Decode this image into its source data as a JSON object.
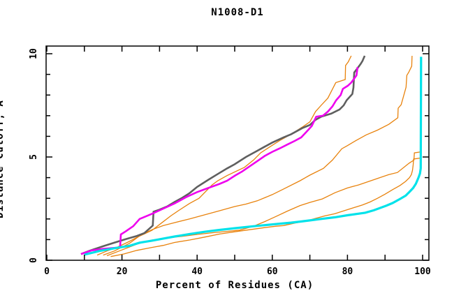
{
  "chart_data": {
    "type": "line",
    "title": "N1008-D1",
    "xlabel": "Percent of Residues (CA)",
    "ylabel": "Distance Cutoff, A",
    "xlim": [
      0,
      100
    ],
    "ylim": [
      0,
      10
    ],
    "x_ticks": [
      0,
      10,
      20,
      30,
      40,
      50,
      60,
      70,
      80,
      90,
      100
    ],
    "x_tick_labels": [
      "0",
      "20",
      "40",
      "60",
      "80",
      "100"
    ],
    "x_labeled_ticks": [
      0,
      20,
      40,
      60,
      80,
      100
    ],
    "y_ticks": [
      0,
      1,
      2,
      3,
      4,
      5,
      6,
      7,
      8,
      9,
      10
    ],
    "y_tick_labels": [
      "0",
      "5",
      "10"
    ],
    "y_labeled_ticks": [
      0,
      5,
      10
    ],
    "grid": false,
    "legend": "none",
    "axis_color": "#000000",
    "series": [
      {
        "name": "model-orange-1",
        "color": "#e8820c",
        "width": 1.3,
        "points": [
          [
            13.4,
            0.25
          ],
          [
            16,
            0.45
          ],
          [
            18.6,
            0.62
          ],
          [
            21.6,
            0.88
          ],
          [
            24.1,
            1.12
          ],
          [
            26,
            1.28
          ],
          [
            28,
            1.45
          ],
          [
            30.5,
            1.8
          ],
          [
            33,
            2.15
          ],
          [
            35,
            2.4
          ],
          [
            38,
            2.75
          ],
          [
            40.5,
            3.0
          ],
          [
            44,
            3.65
          ],
          [
            45.5,
            3.85
          ],
          [
            48,
            4.1
          ],
          [
            52.6,
            4.5
          ],
          [
            55,
            4.85
          ],
          [
            56.9,
            5.2
          ],
          [
            59,
            5.45
          ],
          [
            62,
            5.8
          ],
          [
            65,
            6.1
          ],
          [
            68,
            6.45
          ],
          [
            70,
            6.7
          ],
          [
            71.5,
            7.2
          ],
          [
            73,
            7.5
          ],
          [
            74.8,
            7.85
          ],
          [
            76.9,
            8.6
          ],
          [
            79.4,
            8.75
          ],
          [
            79.5,
            9.43
          ],
          [
            80.2,
            9.6
          ],
          [
            81,
            9.9
          ]
        ]
      },
      {
        "name": "model-orange-2",
        "color": "#e8820c",
        "width": 1.3,
        "points": [
          [
            15,
            0.25
          ],
          [
            18,
            0.45
          ],
          [
            22,
            0.82
          ],
          [
            25,
            1.22
          ],
          [
            28,
            1.48
          ],
          [
            31,
            1.68
          ],
          [
            34,
            1.82
          ],
          [
            38,
            2.0
          ],
          [
            42,
            2.2
          ],
          [
            46,
            2.4
          ],
          [
            50,
            2.6
          ],
          [
            53,
            2.72
          ],
          [
            56,
            2.88
          ],
          [
            60,
            3.18
          ],
          [
            63,
            3.45
          ],
          [
            67.4,
            3.85
          ],
          [
            70,
            4.12
          ],
          [
            73.6,
            4.45
          ],
          [
            76,
            4.85
          ],
          [
            78.5,
            5.4
          ],
          [
            80,
            5.55
          ],
          [
            82.3,
            5.8
          ],
          [
            85,
            6.07
          ],
          [
            88,
            6.3
          ],
          [
            91,
            6.58
          ],
          [
            93.4,
            6.9
          ],
          [
            93.5,
            7.36
          ],
          [
            94.3,
            7.53
          ],
          [
            95.6,
            8.38
          ],
          [
            95.8,
            8.95
          ],
          [
            96.3,
            9.1
          ],
          [
            97.1,
            9.4
          ],
          [
            97.2,
            9.9
          ]
        ]
      },
      {
        "name": "model-orange-3",
        "color": "#e8820c",
        "width": 1.3,
        "points": [
          [
            16,
            0.22
          ],
          [
            20,
            0.5
          ],
          [
            24,
            0.78
          ],
          [
            28,
            0.98
          ],
          [
            32,
            1.08
          ],
          [
            36,
            1.16
          ],
          [
            40,
            1.25
          ],
          [
            44,
            1.33
          ],
          [
            48,
            1.4
          ],
          [
            51.3,
            1.46
          ],
          [
            55,
            1.65
          ],
          [
            58,
            1.87
          ],
          [
            61,
            2.12
          ],
          [
            64,
            2.38
          ],
          [
            67.4,
            2.65
          ],
          [
            70,
            2.8
          ],
          [
            73.3,
            2.97
          ],
          [
            76.7,
            3.27
          ],
          [
            80,
            3.5
          ],
          [
            83,
            3.65
          ],
          [
            87.8,
            3.95
          ],
          [
            91,
            4.15
          ],
          [
            93.3,
            4.25
          ],
          [
            96.4,
            4.7
          ],
          [
            97.7,
            4.85
          ],
          [
            97.8,
            5.2
          ],
          [
            99.6,
            5.25
          ]
        ]
      },
      {
        "name": "model-orange-4",
        "color": "#e8820c",
        "width": 1.3,
        "points": [
          [
            17,
            0.18
          ],
          [
            20.4,
            0.3
          ],
          [
            24,
            0.48
          ],
          [
            28,
            0.62
          ],
          [
            31,
            0.72
          ],
          [
            34,
            0.86
          ],
          [
            38,
            0.98
          ],
          [
            42,
            1.12
          ],
          [
            46,
            1.27
          ],
          [
            50,
            1.38
          ],
          [
            54,
            1.48
          ],
          [
            58,
            1.58
          ],
          [
            61,
            1.65
          ],
          [
            63,
            1.68
          ],
          [
            66,
            1.8
          ],
          [
            69,
            1.9
          ],
          [
            71,
            2.0
          ],
          [
            74,
            2.15
          ],
          [
            76.6,
            2.25
          ],
          [
            80,
            2.45
          ],
          [
            84,
            2.68
          ],
          [
            86,
            2.82
          ],
          [
            88,
            3.0
          ],
          [
            90,
            3.2
          ],
          [
            92,
            3.42
          ],
          [
            94,
            3.62
          ],
          [
            95.5,
            3.82
          ],
          [
            96.5,
            4.0
          ],
          [
            97,
            4.15
          ],
          [
            97.3,
            4.35
          ],
          [
            97.5,
            4.62
          ],
          [
            97.6,
            4.9
          ],
          [
            99.4,
            4.95
          ]
        ]
      },
      {
        "name": "model-gray",
        "color": "#5f5f5f",
        "width": 2.6,
        "points": [
          [
            9.1,
            0.3
          ],
          [
            12,
            0.5
          ],
          [
            15,
            0.68
          ],
          [
            18,
            0.85
          ],
          [
            21,
            1.02
          ],
          [
            24,
            1.18
          ],
          [
            26,
            1.32
          ],
          [
            28.2,
            1.68
          ],
          [
            28.4,
            2.35
          ],
          [
            30,
            2.45
          ],
          [
            32,
            2.6
          ],
          [
            34,
            2.82
          ],
          [
            36,
            3.02
          ],
          [
            38,
            3.25
          ],
          [
            40,
            3.55
          ],
          [
            43,
            3.9
          ],
          [
            45.7,
            4.2
          ],
          [
            48,
            4.45
          ],
          [
            50,
            4.65
          ],
          [
            53,
            5.0
          ],
          [
            56,
            5.3
          ],
          [
            58,
            5.5
          ],
          [
            60,
            5.7
          ],
          [
            63,
            5.95
          ],
          [
            65,
            6.1
          ],
          [
            68,
            6.4
          ],
          [
            70,
            6.55
          ],
          [
            71.5,
            6.8
          ],
          [
            73,
            6.95
          ],
          [
            75.7,
            7.1
          ],
          [
            77.9,
            7.3
          ],
          [
            79,
            7.5
          ],
          [
            79.8,
            7.75
          ],
          [
            81.3,
            8.05
          ],
          [
            81.6,
            8.36
          ],
          [
            81.8,
            9.09
          ],
          [
            82.7,
            9.3
          ],
          [
            83.5,
            9.5
          ],
          [
            84,
            9.65
          ],
          [
            84.6,
            9.9
          ]
        ]
      },
      {
        "name": "model-magenta",
        "color": "#ee00ee",
        "width": 2.6,
        "points": [
          [
            9.1,
            0.3
          ],
          [
            12,
            0.48
          ],
          [
            15,
            0.55
          ],
          [
            19.5,
            0.62
          ],
          [
            19.7,
            1.25
          ],
          [
            21,
            1.4
          ],
          [
            23,
            1.65
          ],
          [
            24.7,
            2.0
          ],
          [
            28,
            2.25
          ],
          [
            31,
            2.5
          ],
          [
            34,
            2.75
          ],
          [
            37,
            3.05
          ],
          [
            40,
            3.3
          ],
          [
            43,
            3.5
          ],
          [
            46,
            3.7
          ],
          [
            48,
            3.85
          ],
          [
            50.1,
            4.1
          ],
          [
            52,
            4.3
          ],
          [
            54,
            4.55
          ],
          [
            56,
            4.8
          ],
          [
            58,
            5.05
          ],
          [
            60,
            5.25
          ],
          [
            62,
            5.42
          ],
          [
            64,
            5.6
          ],
          [
            66,
            5.78
          ],
          [
            67.7,
            5.95
          ],
          [
            69,
            6.2
          ],
          [
            70.5,
            6.5
          ],
          [
            71.7,
            6.95
          ],
          [
            73.5,
            7.0
          ],
          [
            74.8,
            7.2
          ],
          [
            76,
            7.45
          ],
          [
            77,
            7.75
          ],
          [
            78.2,
            8.0
          ],
          [
            78.8,
            8.3
          ],
          [
            80.1,
            8.45
          ],
          [
            81,
            8.6
          ],
          [
            82.4,
            8.95
          ],
          [
            82.7,
            9.35
          ]
        ]
      },
      {
        "name": "model-cyan",
        "color": "#00e2ea",
        "width": 3.2,
        "points": [
          [
            10,
            0.27
          ],
          [
            14,
            0.45
          ],
          [
            18,
            0.58
          ],
          [
            22,
            0.7
          ],
          [
            24.7,
            0.85
          ],
          [
            28,
            0.95
          ],
          [
            31,
            1.05
          ],
          [
            34,
            1.15
          ],
          [
            38,
            1.27
          ],
          [
            42,
            1.38
          ],
          [
            46,
            1.47
          ],
          [
            50,
            1.55
          ],
          [
            54,
            1.63
          ],
          [
            58,
            1.7
          ],
          [
            62,
            1.77
          ],
          [
            65,
            1.82
          ],
          [
            67.4,
            1.87
          ],
          [
            70,
            1.93
          ],
          [
            73,
            2.0
          ],
          [
            76.7,
            2.08
          ],
          [
            80,
            2.18
          ],
          [
            84.7,
            2.3
          ],
          [
            87,
            2.42
          ],
          [
            90.3,
            2.64
          ],
          [
            92,
            2.77
          ],
          [
            94,
            2.97
          ],
          [
            95.5,
            3.13
          ],
          [
            96.5,
            3.31
          ],
          [
            97.5,
            3.5
          ],
          [
            98.2,
            3.7
          ],
          [
            98.9,
            4.0
          ],
          [
            99.3,
            4.2
          ],
          [
            99.5,
            4.45
          ],
          [
            99.6,
            9.85
          ]
        ]
      }
    ]
  }
}
